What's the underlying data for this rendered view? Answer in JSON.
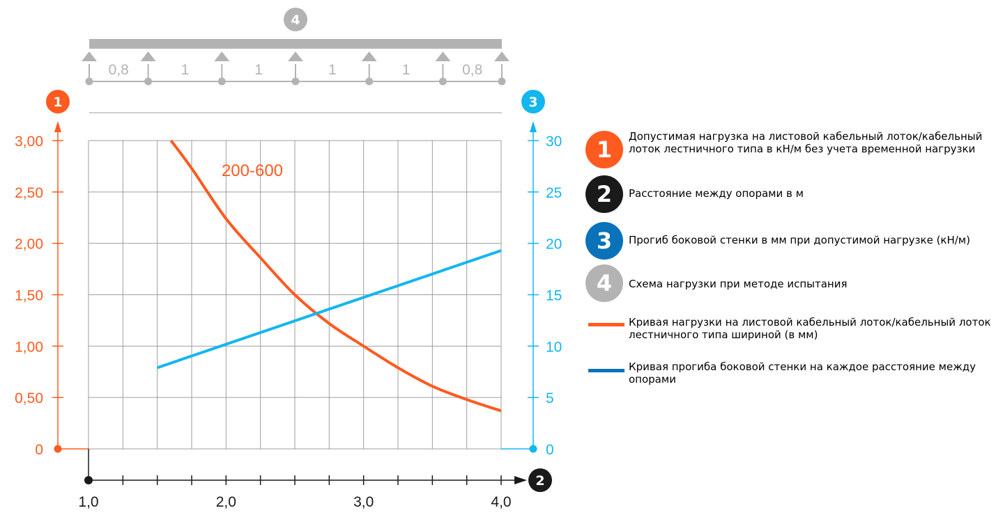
{
  "colors": {
    "load": "#ff5a1f",
    "deflection": "#14b6ef",
    "grid": "#9e9e9e",
    "scheme": "#b3b3b3",
    "axis": "#1a1a1a"
  },
  "chart_data": {
    "type": "line",
    "x": {
      "ticks": [
        "1,0",
        "2,0",
        "3,0",
        "4,0"
      ],
      "range": [
        1.0,
        4.0
      ],
      "marker": "2"
    },
    "y_left": {
      "ticks": [
        "0",
        "0,50",
        "1,00",
        "1,50",
        "2,00",
        "2,50",
        "3,00"
      ],
      "range": [
        0,
        3.0
      ],
      "marker": "1"
    },
    "y_right": {
      "ticks": [
        "0",
        "5",
        "10",
        "15",
        "20",
        "25",
        "30"
      ],
      "range": [
        0,
        30
      ],
      "marker": "3"
    },
    "grid": true,
    "series": [
      {
        "name": "200-600",
        "axis": "left",
        "color": "#ff5a1f",
        "points": [
          [
            1.6,
            3.0
          ],
          [
            1.75,
            2.73
          ],
          [
            2.0,
            2.24
          ],
          [
            2.25,
            1.86
          ],
          [
            2.5,
            1.5
          ],
          [
            2.75,
            1.22
          ],
          [
            3.0,
            1.0
          ],
          [
            3.25,
            0.79
          ],
          [
            3.5,
            0.61
          ],
          [
            3.75,
            0.48
          ],
          [
            4.0,
            0.37
          ]
        ]
      },
      {
        "axis": "right",
        "color": "#14b6ef",
        "points": [
          [
            1.5,
            7.9
          ],
          [
            4.0,
            19.3
          ]
        ]
      }
    ],
    "scheme": {
      "marker": "4",
      "spans": [
        "0,8",
        "1",
        "1",
        "1",
        "1",
        "0,8"
      ]
    }
  },
  "legend": {
    "items": [
      {
        "badge": "1",
        "color": "#ff5a1f",
        "text": "Допустимая нагрузка на листовой кабельный лоток/кабельный лоток лестничного типа в кН/м без учета временной нагрузки"
      },
      {
        "badge": "2",
        "color": "#1a1a1a",
        "text": "Расстояние между опорами в м"
      },
      {
        "badge": "3",
        "color": "#0a72b8",
        "text": "Прогиб боковой стенки в мм при допустимой нагрузке (кН/м)"
      },
      {
        "badge": "4",
        "color": "#b3b3b3",
        "text": "Схема нагрузки при методе испытания"
      },
      {
        "line": true,
        "color": "#ff5a1f",
        "text": "Кривая нагрузки на листовой кабельный лоток/кабельный лоток лестничного типа шириной (в мм)"
      },
      {
        "line": true,
        "color": "#0a72b8",
        "text": "Кривая прогиба боковой стенки на каждое расстояние между опорами"
      }
    ]
  }
}
